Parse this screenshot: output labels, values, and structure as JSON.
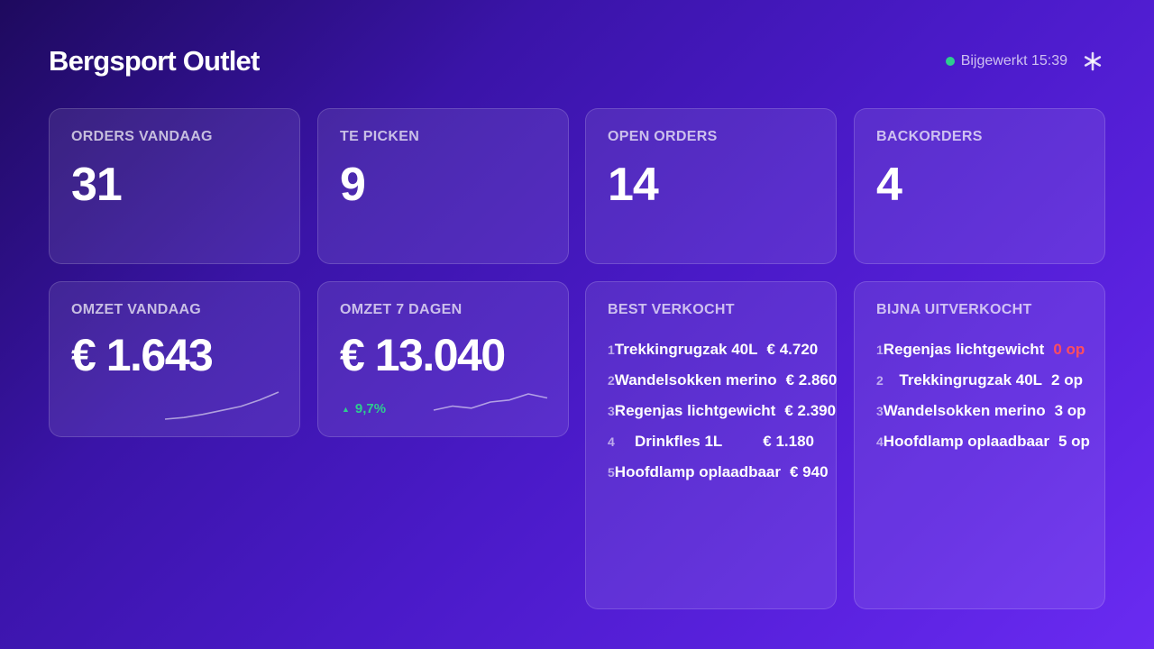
{
  "header": {
    "title": "Bergsport Outlet",
    "status_text": "Bijgewerkt 15:39",
    "status_color": "#2ecc8f",
    "settings_icon": "asterisk-icon"
  },
  "kpis": [
    {
      "label": "Orders vandaag",
      "value": "31"
    },
    {
      "label": "Te picken",
      "value": "9"
    },
    {
      "label": "Open orders",
      "value": "14"
    },
    {
      "label": "Backorders",
      "value": "4"
    }
  ],
  "revenue_today": {
    "label": "Omzet vandaag",
    "value": "€ 1.643",
    "sparkline": [
      2,
      3,
      5,
      7.5,
      10,
      14,
      19
    ]
  },
  "revenue_week": {
    "label": "Omzet 7 dagen",
    "value": "€ 13.040",
    "trend": "9,7%",
    "trend_icon": "arrow-up-icon",
    "trend_color": "#2ecc8f",
    "sparkline": [
      6,
      8,
      7,
      10,
      11,
      14,
      12
    ]
  },
  "best_sold": {
    "label": "Best verkocht",
    "items": [
      {
        "rank": "1",
        "name": "Trekkingrugzak 40L",
        "value": "€ 4.720"
      },
      {
        "rank": "2",
        "name": "Wandelsokken merino",
        "value": "€ 2.860"
      },
      {
        "rank": "3",
        "name": "Regenjas lichtgewicht",
        "value": "€ 2.390"
      },
      {
        "rank": "4",
        "name": "Drinkfles 1L",
        "value": "€ 1.180"
      },
      {
        "rank": "5",
        "name": "Hoofdlamp oplaadbaar",
        "value": "€ 940"
      }
    ]
  },
  "almost_sold_out": {
    "label": "Bijna uitverkocht",
    "alert_color": "#ff4d5e",
    "items": [
      {
        "rank": "1",
        "name": "Regenjas lichtgewicht",
        "value": "0 op",
        "alert": true
      },
      {
        "rank": "2",
        "name": "Trekkingrugzak 40L",
        "value": "2 op",
        "alert": false
      },
      {
        "rank": "3",
        "name": "Wandelsokken merino",
        "value": "3 op",
        "alert": false
      },
      {
        "rank": "4",
        "name": "Hoofdlamp oplaadbaar",
        "value": "5 op",
        "alert": false
      }
    ]
  }
}
